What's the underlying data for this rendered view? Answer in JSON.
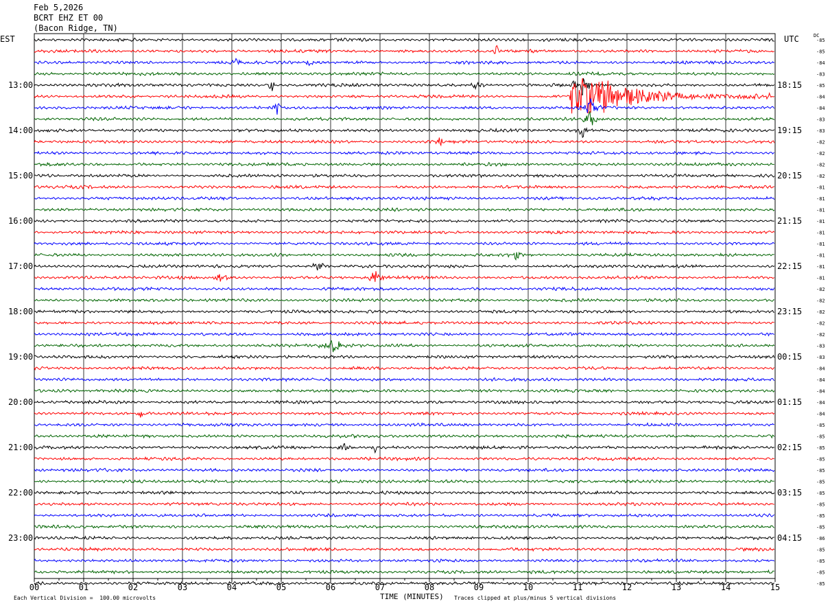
{
  "header": {
    "date": "Feb 5,2026",
    "station": "BCRT EHZ ET 00",
    "location": "(Bacon Ridge, TN)"
  },
  "left_tz": "EST",
  "right_tz": "UTC",
  "dc_label": "DC",
  "footer": {
    "scale_note": "Each Vertical Division =  100.00 microvolts",
    "xlabel": "TIME (MINUTES)",
    "clip_note": "Traces clipped at plus/minus 5 vertical divisions"
  },
  "colors": {
    "trace": [
      "#000000",
      "#ff0000",
      "#0000ff",
      "#006400"
    ],
    "grid": "#000000"
  },
  "chart_data": {
    "type": "line",
    "title": "BCRT EHZ ET 00",
    "xlabel": "TIME (MINUTES)",
    "xlim": [
      0,
      15
    ],
    "x_ticks": [
      "00",
      "01",
      "02",
      "03",
      "04",
      "05",
      "06",
      "07",
      "08",
      "09",
      "10",
      "11",
      "12",
      "13",
      "14",
      "15"
    ],
    "traces_per_hour": 4,
    "minutes_per_trace": 15,
    "left_hour_labels": [
      "13:00",
      "14:00",
      "15:00",
      "16:00",
      "17:00",
      "18:00",
      "19:00",
      "20:00",
      "21:00",
      "22:00",
      "23:00"
    ],
    "right_hour_labels": [
      "18:15",
      "19:15",
      "20:15",
      "21:15",
      "22:15",
      "23:15",
      "00:15",
      "01:15",
      "02:15",
      "03:15",
      "04:15"
    ],
    "dc_offsets": [
      "-85",
      "-85",
      "-84",
      "-83",
      "-85",
      "-84",
      "-84",
      "-83",
      "-83",
      "-82",
      "-82",
      "-82",
      "-82",
      "-81",
      "-81",
      "-81",
      "-81",
      "-81",
      "-81",
      "-81",
      "-81",
      "-81",
      "-82",
      "-82",
      "-82",
      "-82",
      "-82",
      "-83",
      "-83",
      "-84",
      "-84",
      "-84",
      "-84",
      "-84",
      "-85",
      "-85",
      "-85",
      "-85",
      "-85",
      "-85",
      "-85",
      "-85",
      "-85",
      "-85",
      "-86",
      "-85",
      "-85",
      "-85",
      "-85"
    ],
    "events": [
      {
        "trace": 1,
        "minute": 9.3,
        "amp": 2.2,
        "dur": 0.25
      },
      {
        "trace": 2,
        "minute": 4.0,
        "amp": 1.6,
        "dur": 0.3
      },
      {
        "trace": 2,
        "minute": 5.5,
        "amp": 1.5,
        "dur": 0.3
      },
      {
        "trace": 4,
        "minute": 4.75,
        "amp": 3.5,
        "dur": 0.2
      },
      {
        "trace": 4,
        "minute": 8.8,
        "amp": 1.5,
        "dur": 0.5
      },
      {
        "trace": 4,
        "minute": 10.9,
        "amp": 5,
        "dur": 0.6
      },
      {
        "trace": 5,
        "minute": 10.9,
        "amp": 5,
        "dur": 4.0,
        "main": true
      },
      {
        "trace": 6,
        "minute": 4.8,
        "amp": 2.0,
        "dur": 0.4
      },
      {
        "trace": 6,
        "minute": 11.1,
        "amp": 3.5,
        "dur": 0.6
      },
      {
        "trace": 7,
        "minute": 11.1,
        "amp": 3.0,
        "dur": 0.5
      },
      {
        "trace": 8,
        "minute": 11.0,
        "amp": 3.0,
        "dur": 0.3
      },
      {
        "trace": 9,
        "minute": 8.1,
        "amp": 1.5,
        "dur": 0.4
      },
      {
        "trace": 19,
        "minute": 9.6,
        "amp": 1.5,
        "dur": 0.5
      },
      {
        "trace": 20,
        "minute": 5.6,
        "amp": 2.2,
        "dur": 0.5
      },
      {
        "trace": 21,
        "minute": 3.6,
        "amp": 2.0,
        "dur": 0.6
      },
      {
        "trace": 21,
        "minute": 6.7,
        "amp": 2.3,
        "dur": 0.7
      },
      {
        "trace": 27,
        "minute": 5.7,
        "amp": 2.0,
        "dur": 1.2
      },
      {
        "trace": 33,
        "minute": 2.0,
        "amp": 1.5,
        "dur": 0.5
      },
      {
        "trace": 36,
        "minute": 6.1,
        "amp": 1.8,
        "dur": 0.5
      },
      {
        "trace": 36,
        "minute": 6.85,
        "amp": 2.0,
        "dur": 0.15
      },
      {
        "trace": 43,
        "minute": 10.5,
        "amp": 2.0,
        "dur": 0.1
      }
    ]
  }
}
